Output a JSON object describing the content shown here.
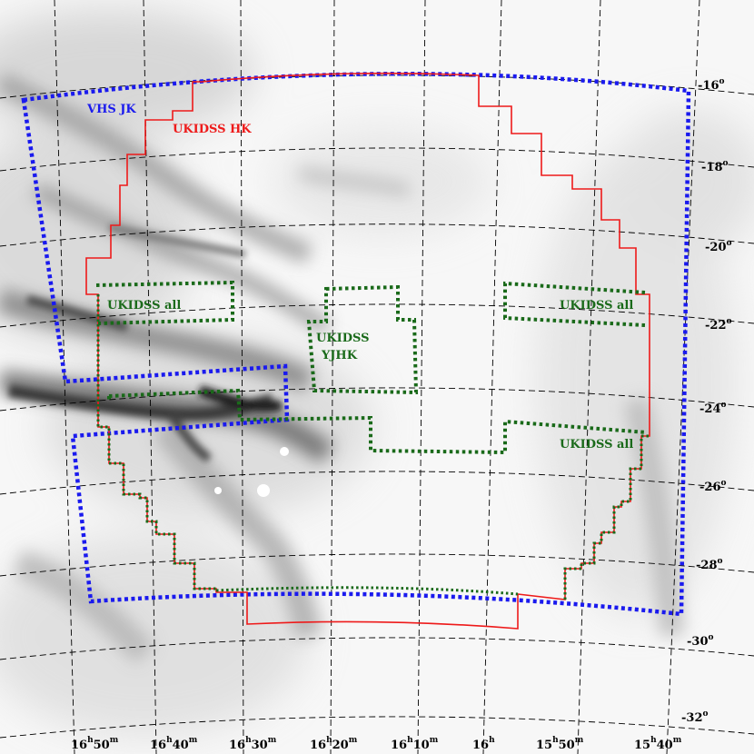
{
  "map": {
    "dec_labels": [
      {
        "deg": "-16",
        "unit": "o"
      },
      {
        "deg": "-18",
        "unit": "o"
      },
      {
        "deg": "-20",
        "unit": "o"
      },
      {
        "deg": "-22",
        "unit": "o"
      },
      {
        "deg": "-24",
        "unit": "o"
      },
      {
        "deg": "-26",
        "unit": "o"
      },
      {
        "deg": "-28",
        "unit": "o"
      },
      {
        "deg": "-30",
        "unit": "o"
      },
      {
        "deg": "-32",
        "unit": "o"
      }
    ],
    "ra_labels": [
      {
        "h": "16",
        "hs": "h",
        "m": "50",
        "ms": "m"
      },
      {
        "h": "16",
        "hs": "h",
        "m": "40",
        "ms": "m"
      },
      {
        "h": "16",
        "hs": "h",
        "m": "30",
        "ms": "m"
      },
      {
        "h": "16",
        "hs": "h",
        "m": "20",
        "ms": "m"
      },
      {
        "h": "16",
        "hs": "h",
        "m": "10",
        "ms": "m"
      },
      {
        "h": "16",
        "hs": "h",
        "m": "",
        "ms": ""
      },
      {
        "h": "15",
        "hs": "h",
        "m": "50",
        "ms": "m"
      },
      {
        "h": "15",
        "hs": "h",
        "m": "40",
        "ms": "m"
      }
    ],
    "surveys": {
      "vhs": {
        "label": "VHS JK",
        "color": "#1a1aee"
      },
      "ukidss_hk": {
        "label": "UKIDSS HK",
        "color": "#ee1a1a"
      },
      "ukidss_all_left": {
        "label": "UKIDSS all",
        "color": "#1a6a1a"
      },
      "ukidss_all_right": {
        "label": "UKIDSS all",
        "color": "#1a6a1a"
      },
      "ukidss_all_lower": {
        "label": "UKIDSS all",
        "color": "#1a6a1a"
      },
      "ukidss_yjhk": {
        "line1": "UKIDSS",
        "line2": "YJHK",
        "color": "#1a6a1a"
      }
    }
  }
}
